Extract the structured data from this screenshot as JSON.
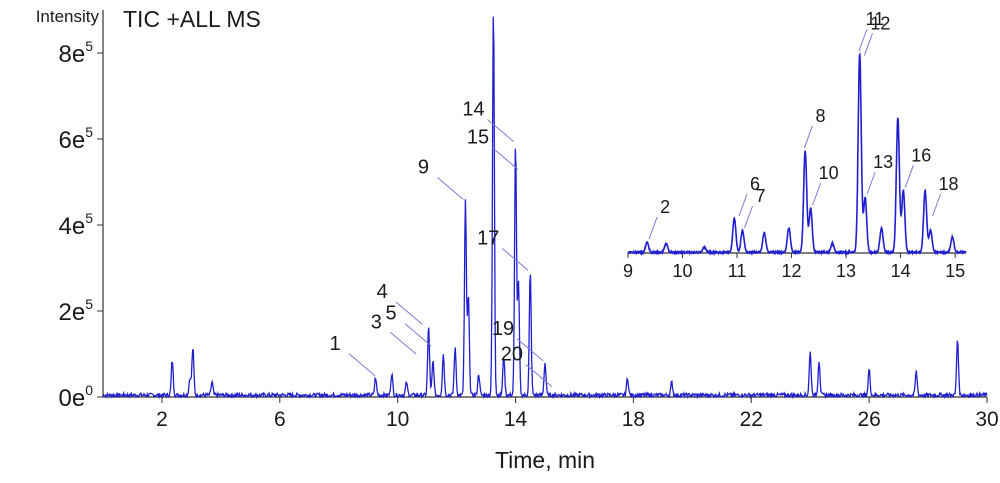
{
  "chart_data": [
    {
      "type": "line",
      "title": "TIC +ALL MS",
      "ylabel": "Intensity",
      "xlabel": "Time, min",
      "xlim": [
        0,
        30
      ],
      "ylim": [
        0,
        900000
      ],
      "grid": false,
      "line_color": "#1f1fd0",
      "xticks": [
        2,
        6,
        10,
        14,
        18,
        22,
        26,
        30
      ],
      "xtick_labels": [
        "2",
        "6",
        "10",
        "14",
        "18",
        "22",
        "26",
        "30"
      ],
      "yticks": [
        0,
        200000,
        400000,
        600000,
        800000
      ],
      "ytick_labels": [
        "0e",
        "2e",
        "4e",
        "6e",
        "8e"
      ],
      "ytick_exponents": [
        "0",
        "5",
        "5",
        "5",
        "5"
      ],
      "peaks": [
        {
          "x": 2.35,
          "y": 80000
        },
        {
          "x": 3.05,
          "y": 110000
        },
        {
          "x": 2.95,
          "y": 40000
        },
        {
          "x": 3.7,
          "y": 30000
        },
        {
          "x": 9.25,
          "y": 40000
        },
        {
          "x": 9.8,
          "y": 50000
        },
        {
          "x": 10.3,
          "y": 30000
        },
        {
          "x": 11.05,
          "y": 160000
        },
        {
          "x": 11.2,
          "y": 80000
        },
        {
          "x": 11.55,
          "y": 95000
        },
        {
          "x": 11.95,
          "y": 110000
        },
        {
          "x": 12.3,
          "y": 450000
        },
        {
          "x": 12.4,
          "y": 230000
        },
        {
          "x": 12.75,
          "y": 50000
        },
        {
          "x": 13.25,
          "y": 900000
        },
        {
          "x": 13.6,
          "y": 90000
        },
        {
          "x": 14.0,
          "y": 585000
        },
        {
          "x": 14.1,
          "y": 260000
        },
        {
          "x": 14.5,
          "y": 285000
        },
        {
          "x": 15.0,
          "y": 75000
        },
        {
          "x": 17.8,
          "y": 40000
        },
        {
          "x": 19.3,
          "y": 30000
        },
        {
          "x": 24.0,
          "y": 100000
        },
        {
          "x": 24.3,
          "y": 80000
        },
        {
          "x": 26.0,
          "y": 60000
        },
        {
          "x": 27.6,
          "y": 55000
        },
        {
          "x": 29.0,
          "y": 130000
        }
      ],
      "labels": [
        {
          "text": "1",
          "x": 9.3,
          "y": 40000
        },
        {
          "text": "3",
          "x": 10.7,
          "y": 90000
        },
        {
          "text": "4",
          "x": 10.9,
          "y": 160000
        },
        {
          "text": "5",
          "x": 11.2,
          "y": 110000
        },
        {
          "text": "9",
          "x": 12.3,
          "y": 450000
        },
        {
          "text": "14",
          "x": 14.0,
          "y": 585000
        },
        {
          "text": "15",
          "x": 14.15,
          "y": 520000
        },
        {
          "text": "17",
          "x": 14.5,
          "y": 285000
        },
        {
          "text": "19",
          "x": 15.0,
          "y": 75000
        },
        {
          "text": "20",
          "x": 15.3,
          "y": 15000
        }
      ]
    },
    {
      "type": "line",
      "title": "",
      "xlim": [
        9,
        15.2
      ],
      "ylim": [
        0,
        900000
      ],
      "line_color": "#1f1fd0",
      "xticks": [
        9,
        10,
        11,
        12,
        13,
        14,
        15
      ],
      "xtick_labels": [
        "9",
        "10",
        "11",
        "12",
        "13",
        "14",
        "15"
      ],
      "peaks": [
        {
          "x": 9.35,
          "y": 45000
        },
        {
          "x": 9.7,
          "y": 40000
        },
        {
          "x": 10.4,
          "y": 25000
        },
        {
          "x": 10.95,
          "y": 155000
        },
        {
          "x": 11.1,
          "y": 100000
        },
        {
          "x": 11.5,
          "y": 90000
        },
        {
          "x": 11.95,
          "y": 110000
        },
        {
          "x": 12.25,
          "y": 460000
        },
        {
          "x": 12.35,
          "y": 200000
        },
        {
          "x": 12.75,
          "y": 40000
        },
        {
          "x": 13.25,
          "y": 900000
        },
        {
          "x": 13.35,
          "y": 250000
        },
        {
          "x": 13.65,
          "y": 110000
        },
        {
          "x": 13.95,
          "y": 610000
        },
        {
          "x": 14.05,
          "y": 280000
        },
        {
          "x": 14.45,
          "y": 280000
        },
        {
          "x": 14.55,
          "y": 100000
        },
        {
          "x": 14.95,
          "y": 70000
        }
      ],
      "labels": [
        {
          "text": "2",
          "x": 9.35,
          "y": 45000
        },
        {
          "text": "6",
          "x": 11.0,
          "y": 150000
        },
        {
          "text": "7",
          "x": 11.1,
          "y": 95000
        },
        {
          "text": "8",
          "x": 12.2,
          "y": 460000
        },
        {
          "text": "10",
          "x": 12.35,
          "y": 200000
        },
        {
          "text": "11",
          "x": 13.2,
          "y": 900000
        },
        {
          "text": "12",
          "x": 13.3,
          "y": 880000
        },
        {
          "text": "13",
          "x": 13.35,
          "y": 250000
        },
        {
          "text": "16",
          "x": 14.05,
          "y": 280000
        },
        {
          "text": "18",
          "x": 14.55,
          "y": 150000
        }
      ]
    }
  ]
}
